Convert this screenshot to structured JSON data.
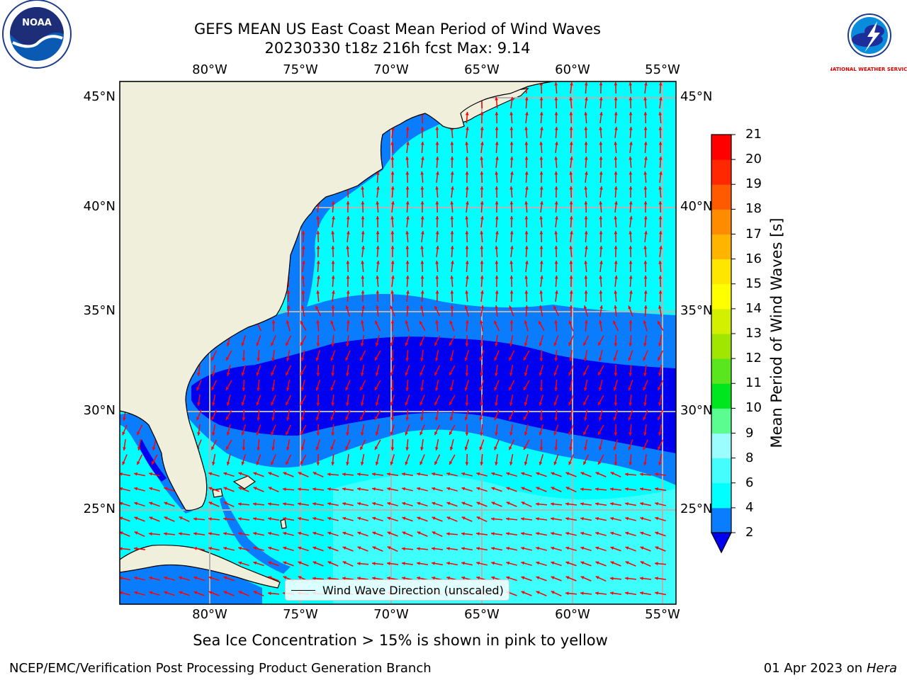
{
  "title": {
    "line1": "GEFS MEAN US East Coast Mean Period of Wind Waves",
    "line2": "20230330 t18z 216h fcst   Max: 9.14"
  },
  "map": {
    "lon_labels": [
      "80°W",
      "75°W",
      "70°W",
      "65°W",
      "60°W",
      "55°W"
    ],
    "lat_labels": [
      "45°N",
      "40°N",
      "35°N",
      "30°N",
      "25°N"
    ],
    "legend_label": "Wind Wave Direction (unscaled)",
    "colors": {
      "land": "#efefdc",
      "band_2_4": "#0a7dff",
      "band_4_6": "#00ffff",
      "band_6_8": "#45fdfd",
      "below_2": "#0000f0",
      "arrow": "#ff0000",
      "grid": "#b4b4b4"
    }
  },
  "colorbar": {
    "ticks": [
      "21",
      "20",
      "19",
      "18",
      "17",
      "16",
      "15",
      "14",
      "13",
      "12",
      "11",
      "10",
      "9",
      "8",
      "6",
      "4",
      "2"
    ],
    "colors": [
      "#0a7dff",
      "#00ffff",
      "#45fdfd",
      "#9bfdfd",
      "#5cfd90",
      "#00e61e",
      "#5ae61e",
      "#a0e600",
      "#d2f000",
      "#ffff00",
      "#ffe600",
      "#ffb400",
      "#ff8c00",
      "#ff5a00",
      "#ff2800",
      "#ff0000"
    ],
    "under_color": "#0000f0",
    "label": "Mean Period of Wind Waves [s]"
  },
  "notes": {
    "ice": "Sea Ice Concentration > 15% is shown in pink to yellow",
    "credit": "NCEP/EMC/Verification Post Processing Product Generation Branch",
    "date": "01 Apr 2023 on",
    "machine": "Hera"
  },
  "logos": {
    "noaa": "NOAA",
    "nws": "NATIONAL WEATHER SERVICE"
  }
}
